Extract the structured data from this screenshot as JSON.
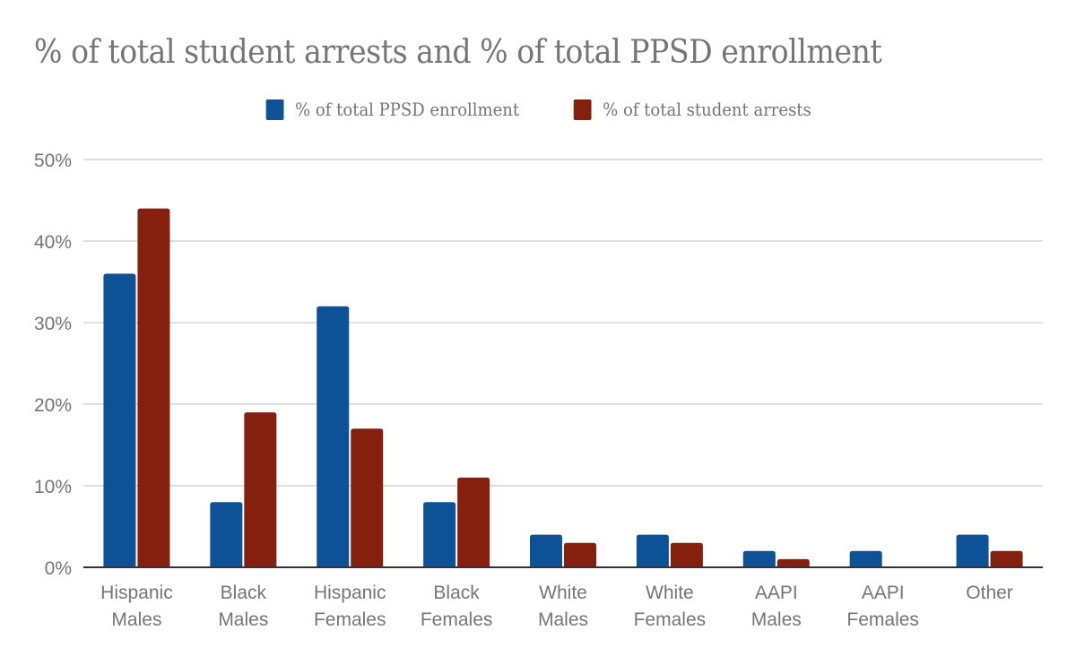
{
  "chart_data": {
    "type": "bar",
    "title": "% of total student arrests and % of total PPSD enrollment",
    "xlabel": "",
    "ylabel": "",
    "ylim": [
      0,
      50
    ],
    "yticks": [
      0,
      10,
      20,
      30,
      40,
      50
    ],
    "ytick_labels": [
      "0%",
      "10%",
      "20%",
      "30%",
      "40%",
      "50%"
    ],
    "grid": true,
    "legend_position": "top-center",
    "categories": [
      [
        "Hispanic",
        "Males"
      ],
      [
        "Black",
        "Males"
      ],
      [
        "Hispanic",
        "Females"
      ],
      [
        "Black",
        "Females"
      ],
      [
        "White",
        "Males"
      ],
      [
        "White",
        "Females"
      ],
      [
        "AAPI",
        "Males"
      ],
      [
        "AAPI",
        "Females"
      ],
      [
        "Other"
      ]
    ],
    "series": [
      {
        "name": "% of total PPSD enrollment",
        "color": "#0d5296",
        "values": [
          36,
          8,
          32,
          8,
          4,
          4,
          2,
          2,
          4
        ]
      },
      {
        "name": "% of total student arrests",
        "color": "#86200e",
        "values": [
          44,
          19,
          17,
          11,
          3,
          3,
          1,
          0,
          2
        ]
      }
    ]
  }
}
